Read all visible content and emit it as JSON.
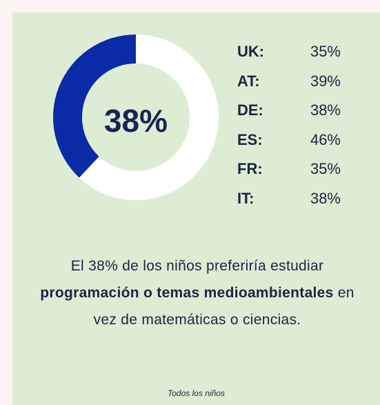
{
  "chart_data": {
    "type": "donut",
    "value": 38,
    "value_label": "38%",
    "color": "#0b2aa6",
    "track_color": "#ffffff"
  },
  "stats": {
    "rows": [
      {
        "country": "UK:",
        "value": "35%"
      },
      {
        "country": "AT:",
        "value": "39%"
      },
      {
        "country": "DE:",
        "value": "38%"
      },
      {
        "country": "ES:",
        "value": "46%"
      },
      {
        "country": "FR:",
        "value": "35%"
      },
      {
        "country": "IT:",
        "value": "38%"
      }
    ]
  },
  "caption": {
    "parts": [
      "El 38% de los niños preferiría estudiar ",
      "programación o temas medioambientales",
      " en vez de matemáticas o ciencias."
    ]
  },
  "footnote": "Todos los niños"
}
